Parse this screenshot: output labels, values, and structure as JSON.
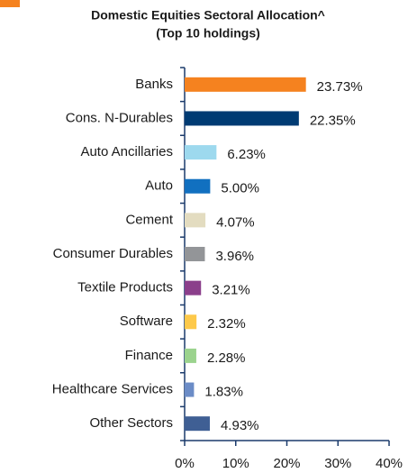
{
  "chart_data": {
    "type": "bar",
    "orientation": "horizontal",
    "title": [
      "Domestic Equities Sectoral Allocation^",
      "(Top 10 holdings)"
    ],
    "categories": [
      "Banks",
      "Cons. N-Durables",
      "Auto Ancillaries",
      "Auto",
      "Cement",
      "Consumer Durables",
      "Textile Products",
      "Software",
      "Finance",
      "Healthcare Services",
      "Other Sectors"
    ],
    "values": [
      23.73,
      22.35,
      6.23,
      5.0,
      4.07,
      3.96,
      3.21,
      2.32,
      2.28,
      1.83,
      4.93
    ],
    "value_labels": [
      "23.73%",
      "22.35%",
      "6.23%",
      "5.00%",
      "4.07%",
      "3.96%",
      "3.21%",
      "2.32%",
      "2.28%",
      "1.83%",
      "4.93%"
    ],
    "colors": [
      "#f5821f",
      "#003b73",
      "#9dd9ee",
      "#1170c0",
      "#e3dcc0",
      "#939598",
      "#8b3f8b",
      "#fdc94a",
      "#9bd38e",
      "#6b8cc7",
      "#3f5f94"
    ],
    "xlim": [
      0,
      40
    ],
    "xticks": [
      {
        "value": 0,
        "label": "0%"
      },
      {
        "value": 10,
        "label": "10%"
      },
      {
        "value": 20,
        "label": "20%"
      },
      {
        "value": 30,
        "label": "30%"
      },
      {
        "value": 40,
        "label": "40%"
      }
    ],
    "grid": false
  }
}
